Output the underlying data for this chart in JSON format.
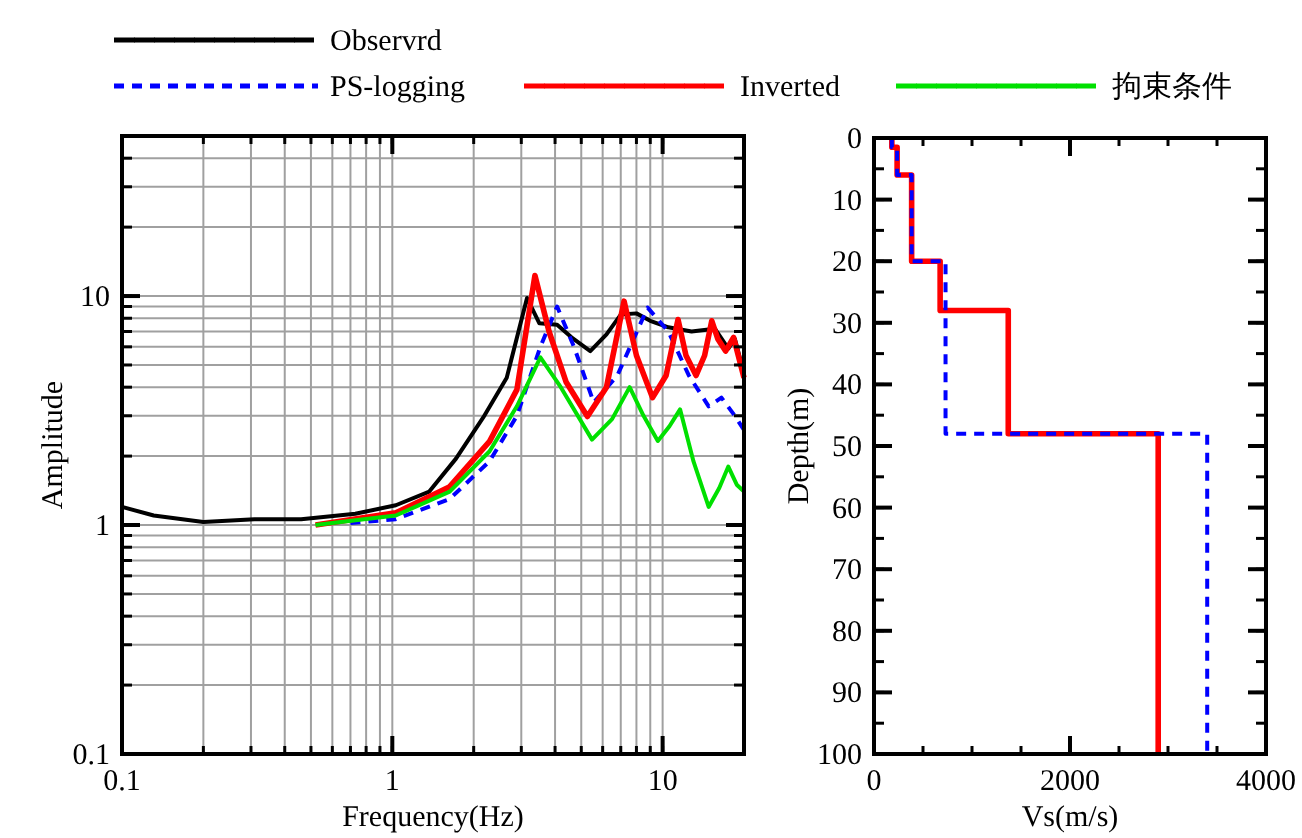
{
  "chart_data": [
    {
      "type": "line",
      "xlabel": "Frequency(Hz)",
      "ylabel": "Amplitude",
      "log": "xy",
      "grid": true,
      "legend": "top",
      "xlim": [
        0.1,
        20
      ],
      "ylim": [
        0.1,
        50
      ],
      "xticks": [
        0.1,
        1,
        10
      ],
      "yticks": [
        0.1,
        1,
        10
      ],
      "series": [
        {
          "name": "Observrd",
          "color": "#000000",
          "line_style": "solid",
          "x": [
            0.1,
            0.131,
            0.2,
            0.309,
            0.46,
            0.73,
            1.03,
            1.37,
            1.72,
            2.17,
            2.65,
            3.15,
            3.5,
            4.07,
            4.6,
            5.4,
            6.2,
            7.0,
            8.0,
            9.0,
            10.5,
            12.8,
            15.6,
            17.5,
            18.5,
            20
          ],
          "values": [
            1.2,
            1.1,
            1.03,
            1.06,
            1.06,
            1.12,
            1.22,
            1.4,
            1.95,
            2.95,
            4.4,
            9.8,
            7.6,
            7.5,
            6.6,
            5.75,
            6.8,
            8.3,
            8.4,
            7.8,
            7.3,
            7.0,
            7.2,
            5.9,
            6.5,
            4.6
          ]
        },
        {
          "name": "PS-logging",
          "color": "#0000ff",
          "line_style": "dashed",
          "x": [
            0.7,
            1.03,
            1.63,
            2.29,
            2.89,
            3.53,
            4.07,
            4.7,
            5.56,
            6.8,
            8.8,
            10.5,
            12.5,
            14.8,
            16.5,
            18.5,
            20
          ],
          "values": [
            1.02,
            1.06,
            1.3,
            1.9,
            3.0,
            6.0,
            9.0,
            6.0,
            3.43,
            4.5,
            8.9,
            7.0,
            4.5,
            3.3,
            3.6,
            3.0,
            2.6
          ]
        },
        {
          "name": "Inverted",
          "color": "#ff0000",
          "line_style": "solid",
          "x": [
            0.52,
            1.03,
            1.63,
            2.29,
            2.89,
            3.37,
            3.8,
            4.4,
            5.27,
            6.2,
            7.2,
            8.0,
            9.18,
            10.3,
            11.4,
            12.2,
            13.3,
            14.3,
            15.2,
            16.0,
            17.1,
            18.3,
            20
          ],
          "values": [
            1.0,
            1.13,
            1.47,
            2.32,
            3.9,
            12.3,
            7.0,
            4.2,
            2.98,
            4.0,
            9.5,
            5.5,
            3.6,
            4.5,
            7.9,
            5.5,
            4.5,
            5.5,
            7.8,
            6.5,
            5.75,
            6.6,
            4.4
          ]
        },
        {
          "name": "拘束条件",
          "color": "#00e000",
          "line_style": "solid",
          "x": [
            0.52,
            1.03,
            1.63,
            2.29,
            2.89,
            3.53,
            4.2,
            5.48,
            6.5,
            7.55,
            8.5,
            9.6,
            10.6,
            11.6,
            13.0,
            14.8,
            16.2,
            17.5,
            18.8,
            20
          ],
          "values": [
            1.0,
            1.1,
            1.4,
            2.1,
            3.3,
            5.4,
            4.0,
            2.36,
            2.9,
            4.0,
            3.0,
            2.33,
            2.7,
            3.2,
            1.9,
            1.2,
            1.45,
            1.8,
            1.5,
            1.4
          ]
        }
      ]
    },
    {
      "type": "line",
      "xlabel": "Vs(m/s)",
      "ylabel": "Depth(m)",
      "xlim": [
        0,
        4000
      ],
      "ylim": [
        100,
        0
      ],
      "xticks": [
        0,
        2000,
        4000
      ],
      "yticks": [
        0,
        10,
        20,
        30,
        40,
        50,
        60,
        70,
        80,
        90,
        100
      ],
      "series": [
        {
          "color": "#ff0000",
          "line_style": "solid",
          "x": [
            182,
            182,
            236,
            236,
            384,
            384,
            675,
            675,
            1370,
            1370,
            2900,
            2900
          ],
          "values": [
            0,
            1.5,
            1.5,
            6,
            6,
            20,
            20,
            28,
            28,
            48,
            48,
            100
          ]
        },
        {
          "color": "#0000ff",
          "line_style": "dashed",
          "x": [
            182,
            182,
            236,
            236,
            384,
            384,
            730,
            730,
            3400,
            3400
          ],
          "values": [
            0,
            1.5,
            1.5,
            6,
            6,
            20,
            20,
            48,
            48,
            100
          ]
        }
      ]
    }
  ]
}
